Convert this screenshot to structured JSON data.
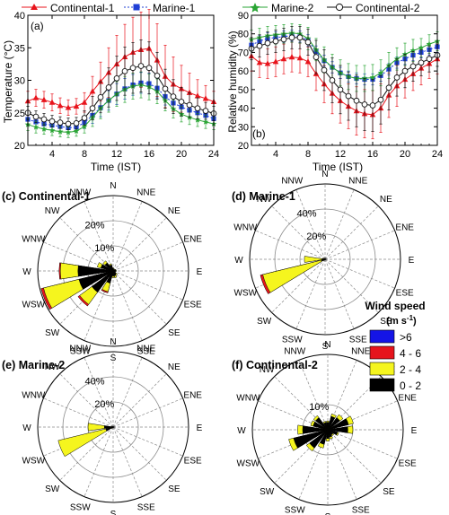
{
  "chart_data": [
    {
      "panel": "(a)",
      "type": "line",
      "xlabel": "Time (IST)",
      "ylabel": "Temperature (°C)",
      "xlim": [
        1,
        24
      ],
      "ylim": [
        20,
        40
      ],
      "x_ticks": [
        4,
        8,
        12,
        16,
        20,
        24
      ],
      "y_ticks": [
        20,
        25,
        30,
        35,
        40
      ],
      "legend": "top",
      "x": [
        1,
        2,
        3,
        4,
        5,
        6,
        7,
        8,
        9,
        10,
        11,
        12,
        13,
        14,
        15,
        16,
        17,
        18,
        19,
        20,
        21,
        22,
        23,
        24
      ],
      "series": [
        {
          "name": "Continental-1",
          "color": "#e8141c",
          "marker": "triangle",
          "values": [
            26.8,
            27.3,
            27.0,
            26.6,
            26.1,
            25.8,
            26.0,
            26.6,
            28.3,
            29.8,
            31.2,
            32.5,
            33.6,
            34.3,
            34.7,
            34.9,
            33.1,
            30.6,
            29.4,
            28.7,
            28.1,
            27.6,
            27.2,
            26.7
          ],
          "errors": [
            1.5,
            1.3,
            1.3,
            1.3,
            1.2,
            1.2,
            1.2,
            1.5,
            2.3,
            3.0,
            3.8,
            4.4,
            5.0,
            5.4,
            5.8,
            6.0,
            5.6,
            4.8,
            4.2,
            3.6,
            3.0,
            2.5,
            2.0,
            1.6
          ]
        },
        {
          "name": "Marine-1",
          "color": "#1f3fd6",
          "marker": "square",
          "values": [
            24.0,
            23.6,
            23.3,
            23.1,
            22.9,
            22.7,
            22.8,
            23.5,
            24.6,
            25.8,
            26.9,
            27.9,
            28.7,
            29.3,
            29.6,
            29.5,
            28.8,
            27.5,
            26.5,
            25.9,
            25.4,
            25.0,
            24.6,
            24.1
          ],
          "errors": [
            0.9,
            0.8,
            0.8,
            0.8,
            0.8,
            0.8,
            0.8,
            0.9,
            1.2,
            1.4,
            1.5,
            1.6,
            1.6,
            1.6,
            1.6,
            1.6,
            1.5,
            1.3,
            1.1,
            1.0,
            1.0,
            0.9,
            0.9,
            0.9
          ]
        },
        {
          "name": "Marine-2",
          "color": "#2aa534",
          "marker": "star",
          "values": [
            23.2,
            22.8,
            22.5,
            22.3,
            22.1,
            22.0,
            22.2,
            22.9,
            24.3,
            25.7,
            26.9,
            27.9,
            28.6,
            29.1,
            29.3,
            29.0,
            28.3,
            26.9,
            25.6,
            24.8,
            24.3,
            23.9,
            23.6,
            23.3
          ],
          "errors": [
            0.9,
            0.9,
            0.8,
            0.8,
            0.8,
            0.8,
            0.8,
            1.0,
            1.4,
            1.6,
            1.8,
            1.9,
            2.0,
            2.0,
            2.0,
            2.0,
            1.9,
            1.6,
            1.4,
            1.2,
            1.1,
            1.0,
            1.0,
            0.9
          ]
        },
        {
          "name": "Continental-2",
          "color": "#111111",
          "marker": "circle-open",
          "values": [
            25.0,
            24.4,
            24.0,
            23.7,
            23.5,
            23.3,
            23.4,
            24.2,
            25.7,
            27.4,
            28.9,
            30.3,
            31.4,
            31.9,
            32.2,
            31.9,
            30.7,
            28.7,
            27.5,
            26.7,
            26.2,
            25.7,
            25.3,
            24.9
          ],
          "errors": [
            1.0,
            0.9,
            0.9,
            0.9,
            0.9,
            0.9,
            0.9,
            1.1,
            1.8,
            2.4,
            3.0,
            3.4,
            3.7,
            3.9,
            4.0,
            4.0,
            3.6,
            3.0,
            2.6,
            2.2,
            1.9,
            1.6,
            1.3,
            1.1
          ]
        }
      ]
    },
    {
      "panel": "(b)",
      "type": "line",
      "xlabel": "Time (IST)",
      "ylabel": "Relative humidity (%)",
      "xlim": [
        1,
        24
      ],
      "ylim": [
        20,
        90
      ],
      "x_ticks": [
        4,
        8,
        12,
        16,
        20,
        24
      ],
      "y_ticks": [
        20,
        30,
        40,
        50,
        60,
        70,
        80,
        90
      ],
      "legend": "top",
      "x": [
        1,
        2,
        3,
        4,
        5,
        6,
        7,
        8,
        9,
        10,
        11,
        12,
        13,
        14,
        15,
        16,
        17,
        18,
        19,
        20,
        21,
        22,
        23,
        24
      ],
      "series": [
        {
          "name": "Continental-1",
          "color": "#e8141c",
          "marker": "triangle",
          "values": [
            68.0,
            64.5,
            64.0,
            65.0,
            66.5,
            67.5,
            67.0,
            65.0,
            58.5,
            53.0,
            48.0,
            44.0,
            41.0,
            38.5,
            37.0,
            36.5,
            40.0,
            47.0,
            52.0,
            55.5,
            58.5,
            61.5,
            64.0,
            66.5
          ],
          "errors": [
            8,
            8,
            8,
            8,
            8,
            8,
            8,
            8,
            9,
            10,
            11,
            12,
            12,
            13,
            13,
            13,
            13,
            12,
            11,
            10,
            9,
            9,
            8,
            8
          ]
        },
        {
          "name": "Marine-1",
          "color": "#1f3fd6",
          "marker": "square",
          "values": [
            74.0,
            76.0,
            77.5,
            78.0,
            78.5,
            79.0,
            78.5,
            76.5,
            70.5,
            65.5,
            62.0,
            59.0,
            57.0,
            56.0,
            55.5,
            55.5,
            57.5,
            61.0,
            64.5,
            66.5,
            68.5,
            70.0,
            71.5,
            73.0
          ],
          "errors": [
            3,
            3,
            3,
            3,
            3,
            3,
            3,
            3,
            3,
            3,
            3,
            3,
            3,
            3,
            3,
            3,
            3,
            3,
            3,
            3,
            3,
            3,
            3,
            3
          ]
        },
        {
          "name": "Marine-2",
          "color": "#2aa534",
          "marker": "star",
          "values": [
            77.0,
            78.0,
            79.0,
            79.5,
            80.0,
            80.5,
            80.0,
            77.5,
            71.5,
            66.0,
            62.0,
            59.0,
            57.0,
            56.0,
            56.0,
            56.5,
            59.0,
            63.0,
            66.5,
            69.0,
            71.0,
            72.5,
            74.5,
            76.0
          ],
          "errors": [
            5,
            5,
            5,
            5,
            5,
            5,
            5,
            6,
            6,
            7,
            7,
            7,
            7,
            7,
            7,
            7,
            7,
            7,
            6,
            6,
            6,
            5,
            5,
            5
          ]
        },
        {
          "name": "Continental-2",
          "color": "#111111",
          "marker": "circle-open",
          "values": [
            72.0,
            73.5,
            75.0,
            76.0,
            77.0,
            78.0,
            78.0,
            75.5,
            67.5,
            60.5,
            55.0,
            50.0,
            46.5,
            44.0,
            42.0,
            41.5,
            44.5,
            51.0,
            56.5,
            60.0,
            62.5,
            64.5,
            66.5,
            68.5
          ],
          "errors": [
            6,
            6,
            6,
            6,
            6,
            6,
            6,
            7,
            9,
            11,
            12,
            13,
            13,
            14,
            14,
            14,
            13,
            12,
            10,
            9,
            8,
            7,
            7,
            6
          ]
        }
      ]
    },
    {
      "panel": "(c)",
      "title": "Continental-1",
      "type": "wind-rose",
      "directions": [
        "N",
        "NNE",
        "NE",
        "ENE",
        "E",
        "ESE",
        "SE",
        "SSE",
        "S",
        "SSW",
        "SW",
        "WSW",
        "W",
        "WNW",
        "NW",
        "NNW"
      ],
      "rings_percent": [
        10,
        20
      ],
      "ring_max": 30,
      "bins": [
        "0 - 2",
        "2 - 4",
        "4 - 6",
        ">6"
      ],
      "frequencies": [
        [
          1.0,
          0.3,
          0,
          0
        ],
        [
          0.6,
          0.2,
          0,
          0
        ],
        [
          0.8,
          0.2,
          0,
          0
        ],
        [
          1.0,
          0.2,
          0,
          0
        ],
        [
          1.0,
          0.3,
          0,
          0
        ],
        [
          0.8,
          0.2,
          0,
          0
        ],
        [
          1.5,
          0.5,
          0,
          0
        ],
        [
          2.0,
          0.8,
          0,
          0
        ],
        [
          2.0,
          0.7,
          0,
          0
        ],
        [
          5.0,
          3.5,
          0.5,
          0
        ],
        [
          10.5,
          6.0,
          0.8,
          0
        ],
        [
          14.0,
          14.5,
          1.0,
          0
        ],
        [
          14.0,
          7.0,
          0.5,
          0
        ],
        [
          5.0,
          1.5,
          0,
          0
        ],
        [
          4.0,
          1.0,
          0,
          0
        ],
        [
          2.5,
          0.5,
          0,
          0
        ]
      ]
    },
    {
      "panel": "(d)",
      "title": "Marine-1",
      "type": "wind-rose",
      "directions": [
        "N",
        "NNE",
        "NE",
        "ENE",
        "E",
        "ESE",
        "SE",
        "SSE",
        "S",
        "SSW",
        "SW",
        "WSW",
        "W",
        "WNW",
        "NW",
        "NNW"
      ],
      "rings_percent": [
        20,
        40
      ],
      "ring_max": 60,
      "bins": [
        "0 - 2",
        "2 - 4",
        "4 - 6",
        ">6"
      ],
      "frequencies": [
        [
          1.0,
          0,
          0,
          0
        ],
        [
          0.5,
          0,
          0,
          0
        ],
        [
          0.5,
          0,
          0,
          0
        ],
        [
          0.5,
          0,
          0,
          0
        ],
        [
          1.0,
          0,
          0,
          0
        ],
        [
          0.5,
          0,
          0,
          0
        ],
        [
          0.5,
          0,
          0,
          0
        ],
        [
          0.5,
          0,
          0,
          0
        ],
        [
          0.5,
          0,
          0,
          0
        ],
        [
          0.5,
          0,
          0,
          0
        ],
        [
          1.0,
          0.5,
          0,
          0
        ],
        [
          3.0,
          48.0,
          2.0,
          0
        ],
        [
          2.5,
          14.0,
          0,
          0
        ],
        [
          1.0,
          1.0,
          0,
          0
        ],
        [
          0.5,
          0,
          0,
          0
        ],
        [
          0.5,
          0,
          0,
          0
        ]
      ]
    },
    {
      "panel": "(e)",
      "title": "Marine-2",
      "type": "wind-rose",
      "directions": [
        "N",
        "NNE",
        "NE",
        "ENE",
        "E",
        "ESE",
        "SE",
        "SSE",
        "S",
        "SSW",
        "SW",
        "WSW",
        "W",
        "WNW",
        "NW",
        "NNW"
      ],
      "rings_percent": [
        20,
        40
      ],
      "ring_max": 60,
      "bins": [
        "0 - 2",
        "2 - 4",
        "4 - 6",
        ">6"
      ],
      "frequencies": [
        [
          0.5,
          0,
          0,
          0
        ],
        [
          0.5,
          0,
          0,
          0
        ],
        [
          0.5,
          0,
          0,
          0
        ],
        [
          0.5,
          0,
          0,
          0
        ],
        [
          1.0,
          0,
          0,
          0
        ],
        [
          0.5,
          0,
          0,
          0
        ],
        [
          0.5,
          0,
          0,
          0
        ],
        [
          0.5,
          0,
          0,
          0
        ],
        [
          0.5,
          0,
          0,
          0
        ],
        [
          0.5,
          0,
          0,
          0
        ],
        [
          1.0,
          0.5,
          0,
          0
        ],
        [
          6.0,
          39.0,
          0,
          0
        ],
        [
          7.0,
          13.0,
          0,
          0
        ],
        [
          1.0,
          0.5,
          0,
          0
        ],
        [
          0.5,
          0,
          0,
          0
        ],
        [
          0.5,
          0,
          0,
          0
        ]
      ]
    },
    {
      "panel": "(f)",
      "title": "Continental-2",
      "type": "wind-rose",
      "directions": [
        "N",
        "NNE",
        "NE",
        "ENE",
        "E",
        "ESE",
        "SE",
        "SSE",
        "S",
        "SSW",
        "SW",
        "WSW",
        "W",
        "WNW",
        "NW",
        "NNW"
      ],
      "rings_percent": [
        10
      ],
      "ring_max": 30,
      "bins": [
        "0 - 2",
        "2 - 4",
        "4 - 6",
        ">6"
      ],
      "frequencies": [
        [
          3.0,
          0.5,
          0,
          0
        ],
        [
          5.5,
          1.0,
          0,
          0
        ],
        [
          6.0,
          1.5,
          0,
          0
        ],
        [
          8.5,
          2.0,
          0,
          0
        ],
        [
          8.0,
          2.0,
          0,
          0
        ],
        [
          4.0,
          0.5,
          0,
          0
        ],
        [
          2.5,
          0.5,
          0,
          0
        ],
        [
          3.0,
          0.8,
          0,
          0
        ],
        [
          3.5,
          1.0,
          0,
          0
        ],
        [
          6.0,
          1.5,
          0,
          0
        ],
        [
          9.0,
          1.5,
          0,
          0
        ],
        [
          14.0,
          2.0,
          0,
          0
        ],
        [
          10.0,
          2.0,
          0,
          0
        ],
        [
          6.0,
          1.0,
          0,
          0
        ],
        [
          6.0,
          1.0,
          0,
          0
        ],
        [
          3.0,
          0.5,
          0,
          0
        ]
      ]
    }
  ],
  "panels": {
    "a": {
      "label": "(a)",
      "xlabel": "Time (IST)",
      "ylabel": "Temperature (°C)"
    },
    "b": {
      "label": "(b)",
      "xlabel": "Time (IST)",
      "ylabel": "Relative humidity (%)"
    },
    "c": {
      "title": "(c) Continental-1",
      "ring_labels": [
        "10%",
        "20%"
      ]
    },
    "d": {
      "title": "(d) Marine-1",
      "ring_labels": [
        "20%",
        "40%"
      ]
    },
    "e": {
      "title": "(e) Marine-2",
      "ring_labels": [
        "20%",
        "40%"
      ]
    },
    "f": {
      "title": "(f) Continental-2",
      "ring_labels": [
        "10%"
      ]
    }
  },
  "legend_top_left": [
    "Continental-1",
    "Marine-1"
  ],
  "legend_top_right": [
    "Marine-2",
    "Continental-2"
  ],
  "wind_legend": {
    "title": "Wind speed",
    "unit_base": "(m s",
    "unit_sup": "-1",
    "unit_close": ")",
    "bins": [
      {
        "label": ">6",
        "color": "#1414e6"
      },
      {
        "label": "4 - 6",
        "color": "#e6141c"
      },
      {
        "label": "2 - 4",
        "color": "#f5f51e"
      },
      {
        "label": "0 - 2",
        "color": "#000000"
      }
    ]
  }
}
